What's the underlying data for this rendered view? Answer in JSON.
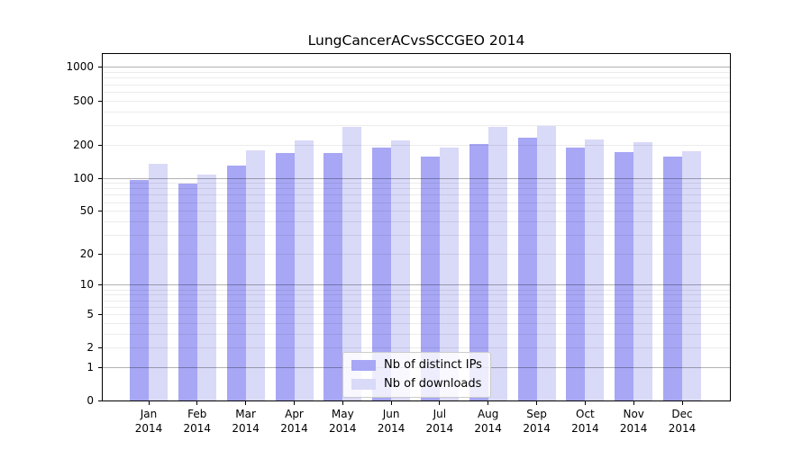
{
  "chart_data": {
    "type": "bar",
    "title": "LungCancerACvsSCCGEO 2014",
    "categories": [
      "Jan 2014",
      "Feb 2014",
      "Mar 2014",
      "Apr 2014",
      "May 2014",
      "Jun 2014",
      "Jul 2014",
      "Aug 2014",
      "Sep 2014",
      "Oct 2014",
      "Nov 2014",
      "Dec 2014"
    ],
    "series": [
      {
        "name": "Nb of distinct IPs",
        "color": "#a7a7f5",
        "values": [
          96,
          89,
          128,
          169,
          169,
          189,
          156,
          203,
          232,
          186,
          171,
          157
        ]
      },
      {
        "name": "Nb of downloads",
        "color": "#d9d9f8",
        "values": [
          133,
          106,
          176,
          220,
          291,
          216,
          186,
          291,
          293,
          224,
          209,
          173
        ]
      }
    ],
    "xlabel": "",
    "ylabel": "",
    "y_scale": "log10(value+1)",
    "ylim": [
      0,
      1310
    ],
    "yticks": [
      1000,
      500,
      200,
      100,
      50,
      20,
      10,
      5,
      2,
      1,
      0
    ],
    "major_gridlines": [
      1,
      10,
      100,
      1000
    ],
    "minor_gridlines": [
      2,
      3,
      4,
      5,
      6,
      7,
      8,
      9,
      20,
      30,
      40,
      50,
      60,
      70,
      80,
      90,
      200,
      300,
      400,
      500,
      600,
      700,
      800,
      900
    ],
    "grid": "on",
    "legend_position": "lower-center-inside"
  },
  "colors": {
    "background": "#ffffff",
    "spine": "#000000",
    "text": "#000000",
    "bar_distinct_ips": "#a7a7f5",
    "bar_downloads": "#d9d9f8",
    "grid_major": "rgba(0,0,0,0.30)",
    "grid_minor": "rgba(0,0,0,0.075)",
    "legend_border": "#cbcbcb",
    "legend_background": "rgba(255,255,255,0.8)"
  }
}
